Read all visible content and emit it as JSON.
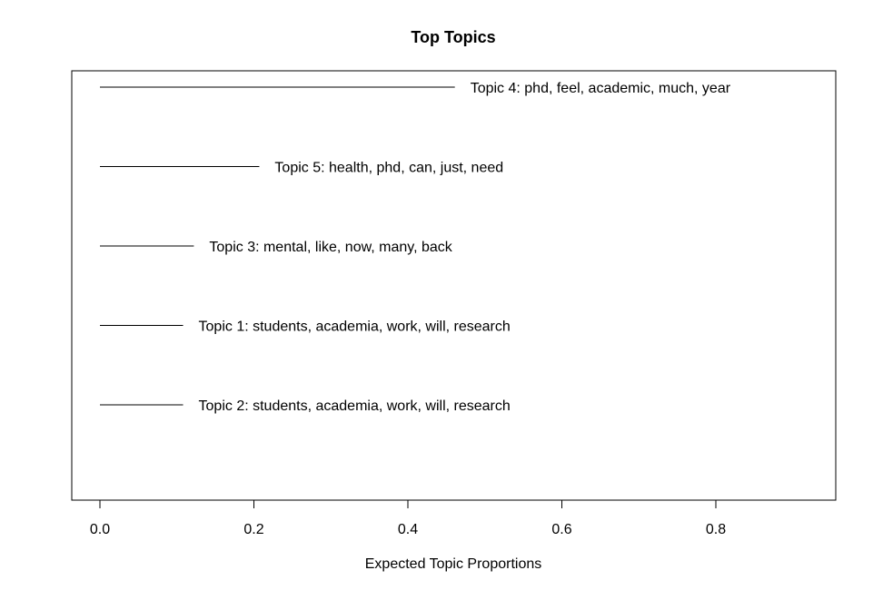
{
  "chart_data": {
    "type": "bar",
    "orientation": "horizontal",
    "title": "Top Topics",
    "xlabel": "Expected Topic Proportions",
    "ylabel": "",
    "xlim": [
      0,
      0.95
    ],
    "xticks": [
      0.0,
      0.2,
      0.4,
      0.6,
      0.8
    ],
    "xtick_labels": [
      "0.0",
      "0.2",
      "0.4",
      "0.6",
      "0.8"
    ],
    "grid": false,
    "categories": [
      "Topic 4: phd, feel, academic, much, year",
      "Topic 5: health, phd, can, just, need",
      "Topic 3: mental, like, now, many, back",
      "Topic 1: students, academia, work, will, research",
      "Topic 2: students, academia, work, will, research"
    ],
    "values": [
      0.461,
      0.207,
      0.122,
      0.108,
      0.108
    ],
    "colors": {
      "line": "#000000",
      "frame": "#000000",
      "background": "#ffffff"
    }
  }
}
